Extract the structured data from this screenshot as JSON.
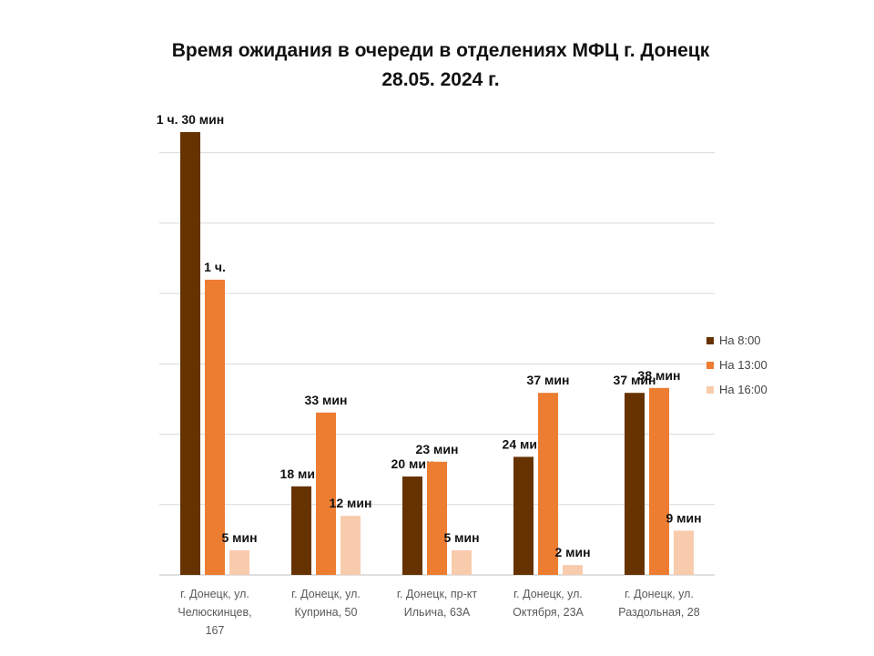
{
  "title": {
    "line1": "Время ожидания в очереди в отделениях МФЦ г. Донецк",
    "line2": "28.05. 2024 г."
  },
  "colors": {
    "series_8": "#663300",
    "series_13": "#ED7D31",
    "series_16": "#F8CBAD",
    "grid": "#D9D9D9",
    "axis": "#BFBFBF",
    "text": "#595959"
  },
  "chart_data": {
    "type": "bar",
    "title": "Время ожидания в очереди в отделениях МФЦ г. Донецк 28.05. 2024 г.",
    "categories": [
      [
        "г. Донецк, ул.",
        "Челюскинцев,",
        "167"
      ],
      [
        "г. Донецк, ул.",
        "Куприна, 50"
      ],
      [
        "г. Донецк, пр-кт",
        "Ильича, 63А"
      ],
      [
        "г. Донецк, ул.",
        "Октября, 23А"
      ],
      [
        "г. Донецк, ул.",
        "Раздольная, 28"
      ]
    ],
    "unit": "minutes",
    "ylim": [
      0,
      100
    ],
    "grid": true,
    "legend_position": "right",
    "series": [
      {
        "name": "На 8:00",
        "values": [
          90,
          18,
          20,
          24,
          37
        ],
        "labels": [
          "1 ч. 30  мин",
          "18 мин",
          "20 мин",
          "24 мин",
          "37 мин"
        ]
      },
      {
        "name": "На 13:00",
        "values": [
          60,
          33,
          23,
          37,
          38
        ],
        "labels": [
          "1 ч.",
          "33 мин",
          "23 мин",
          "37 мин",
          "38 мин"
        ]
      },
      {
        "name": "На 16:00",
        "values": [
          5,
          12,
          5,
          2,
          9
        ],
        "labels": [
          "5 мин",
          "12 мин",
          "5 мин",
          "2 мин",
          "9 мин"
        ]
      }
    ]
  }
}
